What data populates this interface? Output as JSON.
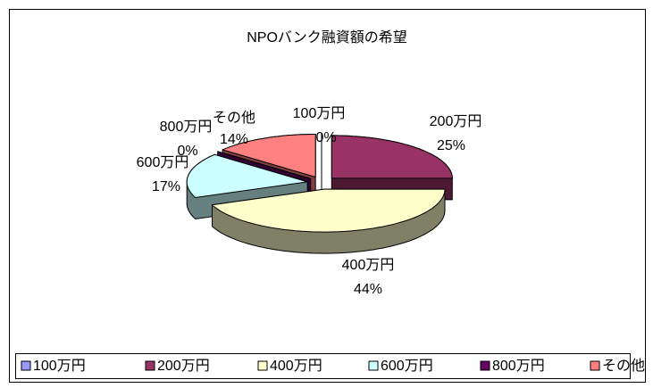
{
  "chart_data": {
    "type": "pie",
    "title": "NPOバンク融資額の希望",
    "categories": [
      "100万円",
      "200万円",
      "400万円",
      "600万円",
      "800万円",
      "その他"
    ],
    "values": [
      0,
      25,
      44,
      17,
      0,
      14
    ],
    "value_labels": [
      "0%",
      "25%",
      "44%",
      "17%",
      "0%",
      "14%"
    ],
    "colors": [
      "#9999ff",
      "#993366",
      "#ffffcc",
      "#ccffff",
      "#660066",
      "#ff8080"
    ],
    "legend": "bottom"
  }
}
